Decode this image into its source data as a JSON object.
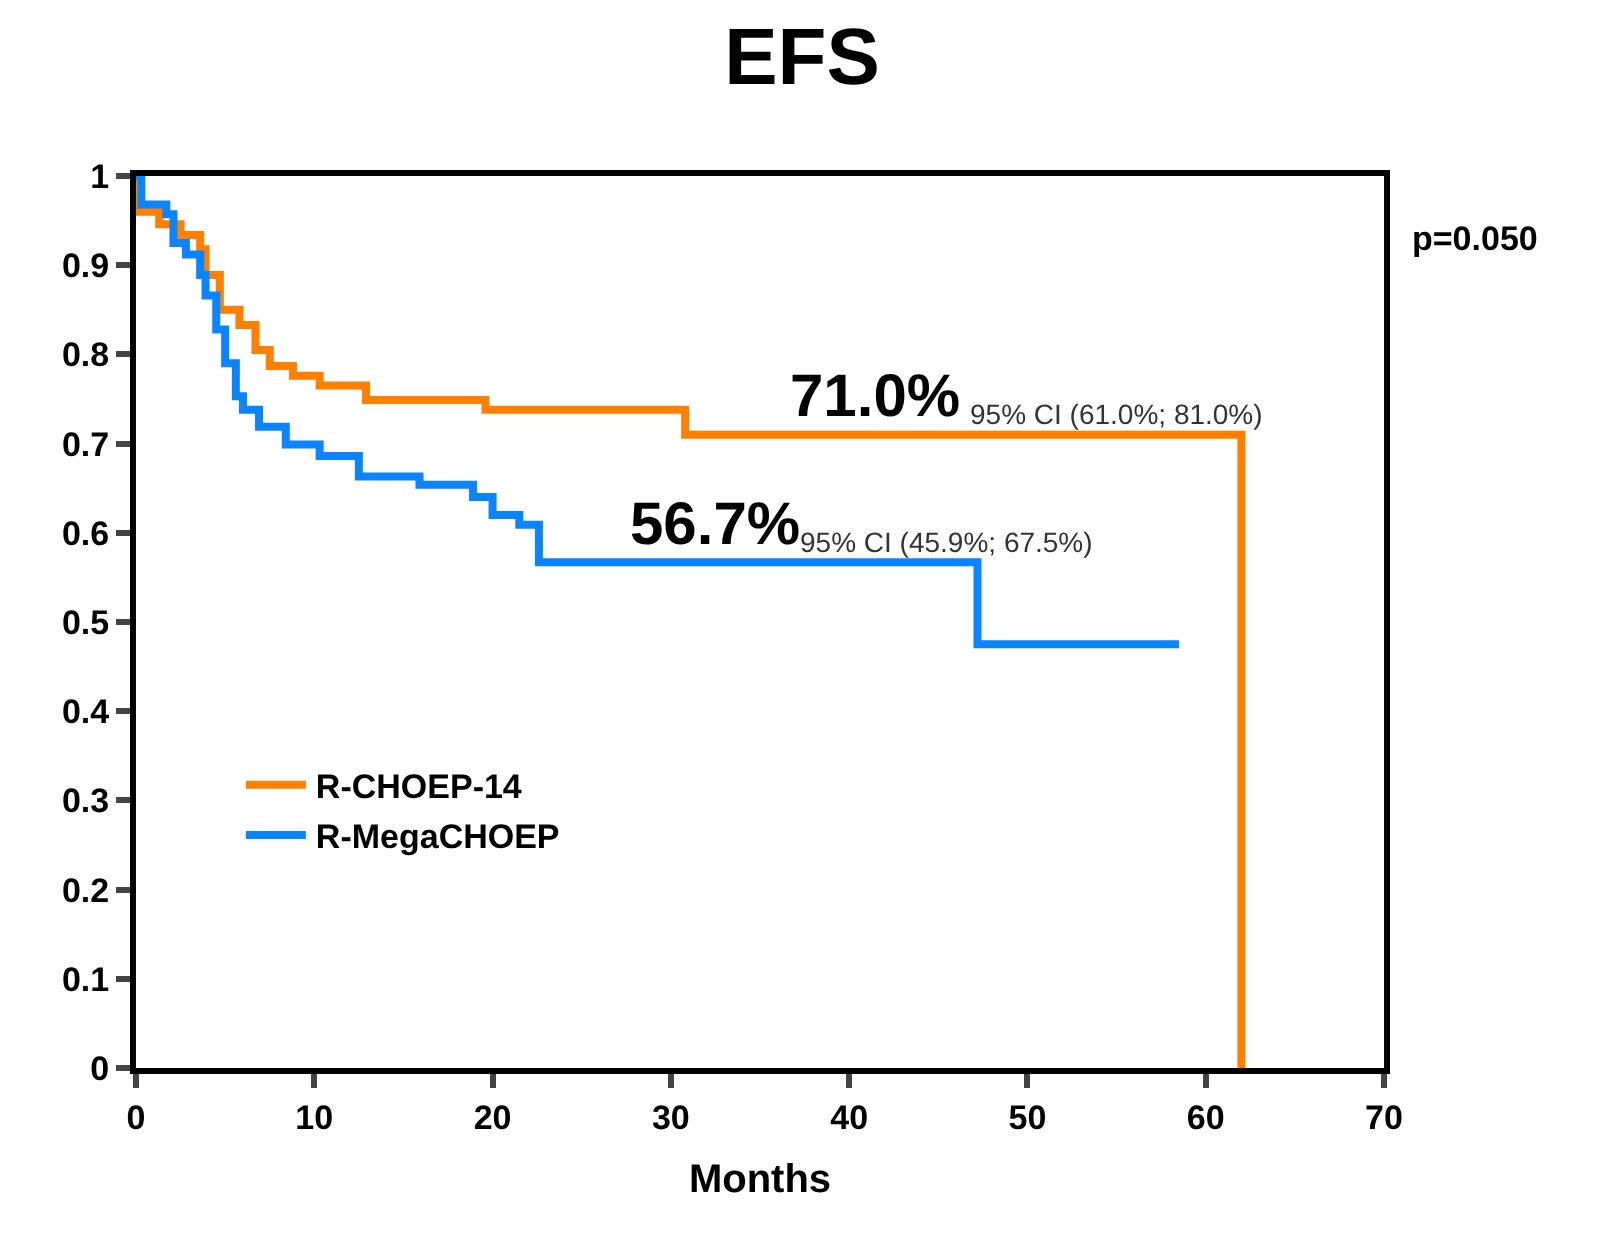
{
  "chart_data": {
    "type": "step",
    "title": "EFS",
    "xlabel": "Months",
    "xlim": [
      0,
      70
    ],
    "xticks": [
      0,
      10,
      20,
      30,
      40,
      50,
      60,
      70
    ],
    "ylim": [
      0,
      1
    ],
    "yticks": [
      0,
      0.1,
      0.2,
      0.3,
      0.4,
      0.5,
      0.6,
      0.7,
      0.8,
      0.9,
      1
    ],
    "legend": "bottom left",
    "marker": "none",
    "line_style": "solid",
    "series": [
      {
        "name": "R-CHOEP-14",
        "color": "#ff7f00",
        "x": [
          0,
          0.2,
          1.3,
          2.5,
          3.6,
          3.9,
          4.7,
          5.8,
          6.7,
          7.5,
          8.8,
          10.3,
          12.9,
          19.6,
          30.8,
          62,
          62
        ],
        "values": [
          1,
          0.96,
          0.946,
          0.934,
          0.918,
          0.889,
          0.85,
          0.833,
          0.805,
          0.787,
          0.776,
          0.765,
          0.749,
          0.738,
          0.71,
          0.71,
          0
        ]
      },
      {
        "name": "R-MegaCHOEP",
        "color": "#0a84ff",
        "x": [
          0,
          0.3,
          1.7,
          2.1,
          2.8,
          3.6,
          3.9,
          4.5,
          5.0,
          5.6,
          6.0,
          6.9,
          8.4,
          10.3,
          12.5,
          15.9,
          18.9,
          20,
          21.5,
          22.6,
          47.2,
          58.5
        ],
        "values": [
          1,
          0.968,
          0.957,
          0.925,
          0.912,
          0.889,
          0.866,
          0.828,
          0.79,
          0.753,
          0.738,
          0.719,
          0.699,
          0.686,
          0.663,
          0.654,
          0.64,
          0.62,
          0.609,
          0.567,
          0.475,
          0.475
        ]
      }
    ],
    "annotations": [
      {
        "text": "71.0%",
        "x": 36.5,
        "y": 0.71
      },
      {
        "text": "95% CI (61.0%; 81.0%)",
        "x": 46.5,
        "y": 0.71
      },
      {
        "text": "56.7%",
        "x": 27.5,
        "y": 0.567
      },
      {
        "text": "95% CI (45.9%; 67.5%)",
        "x": 37,
        "y": 0.567
      },
      "p=0.050"
    ]
  }
}
